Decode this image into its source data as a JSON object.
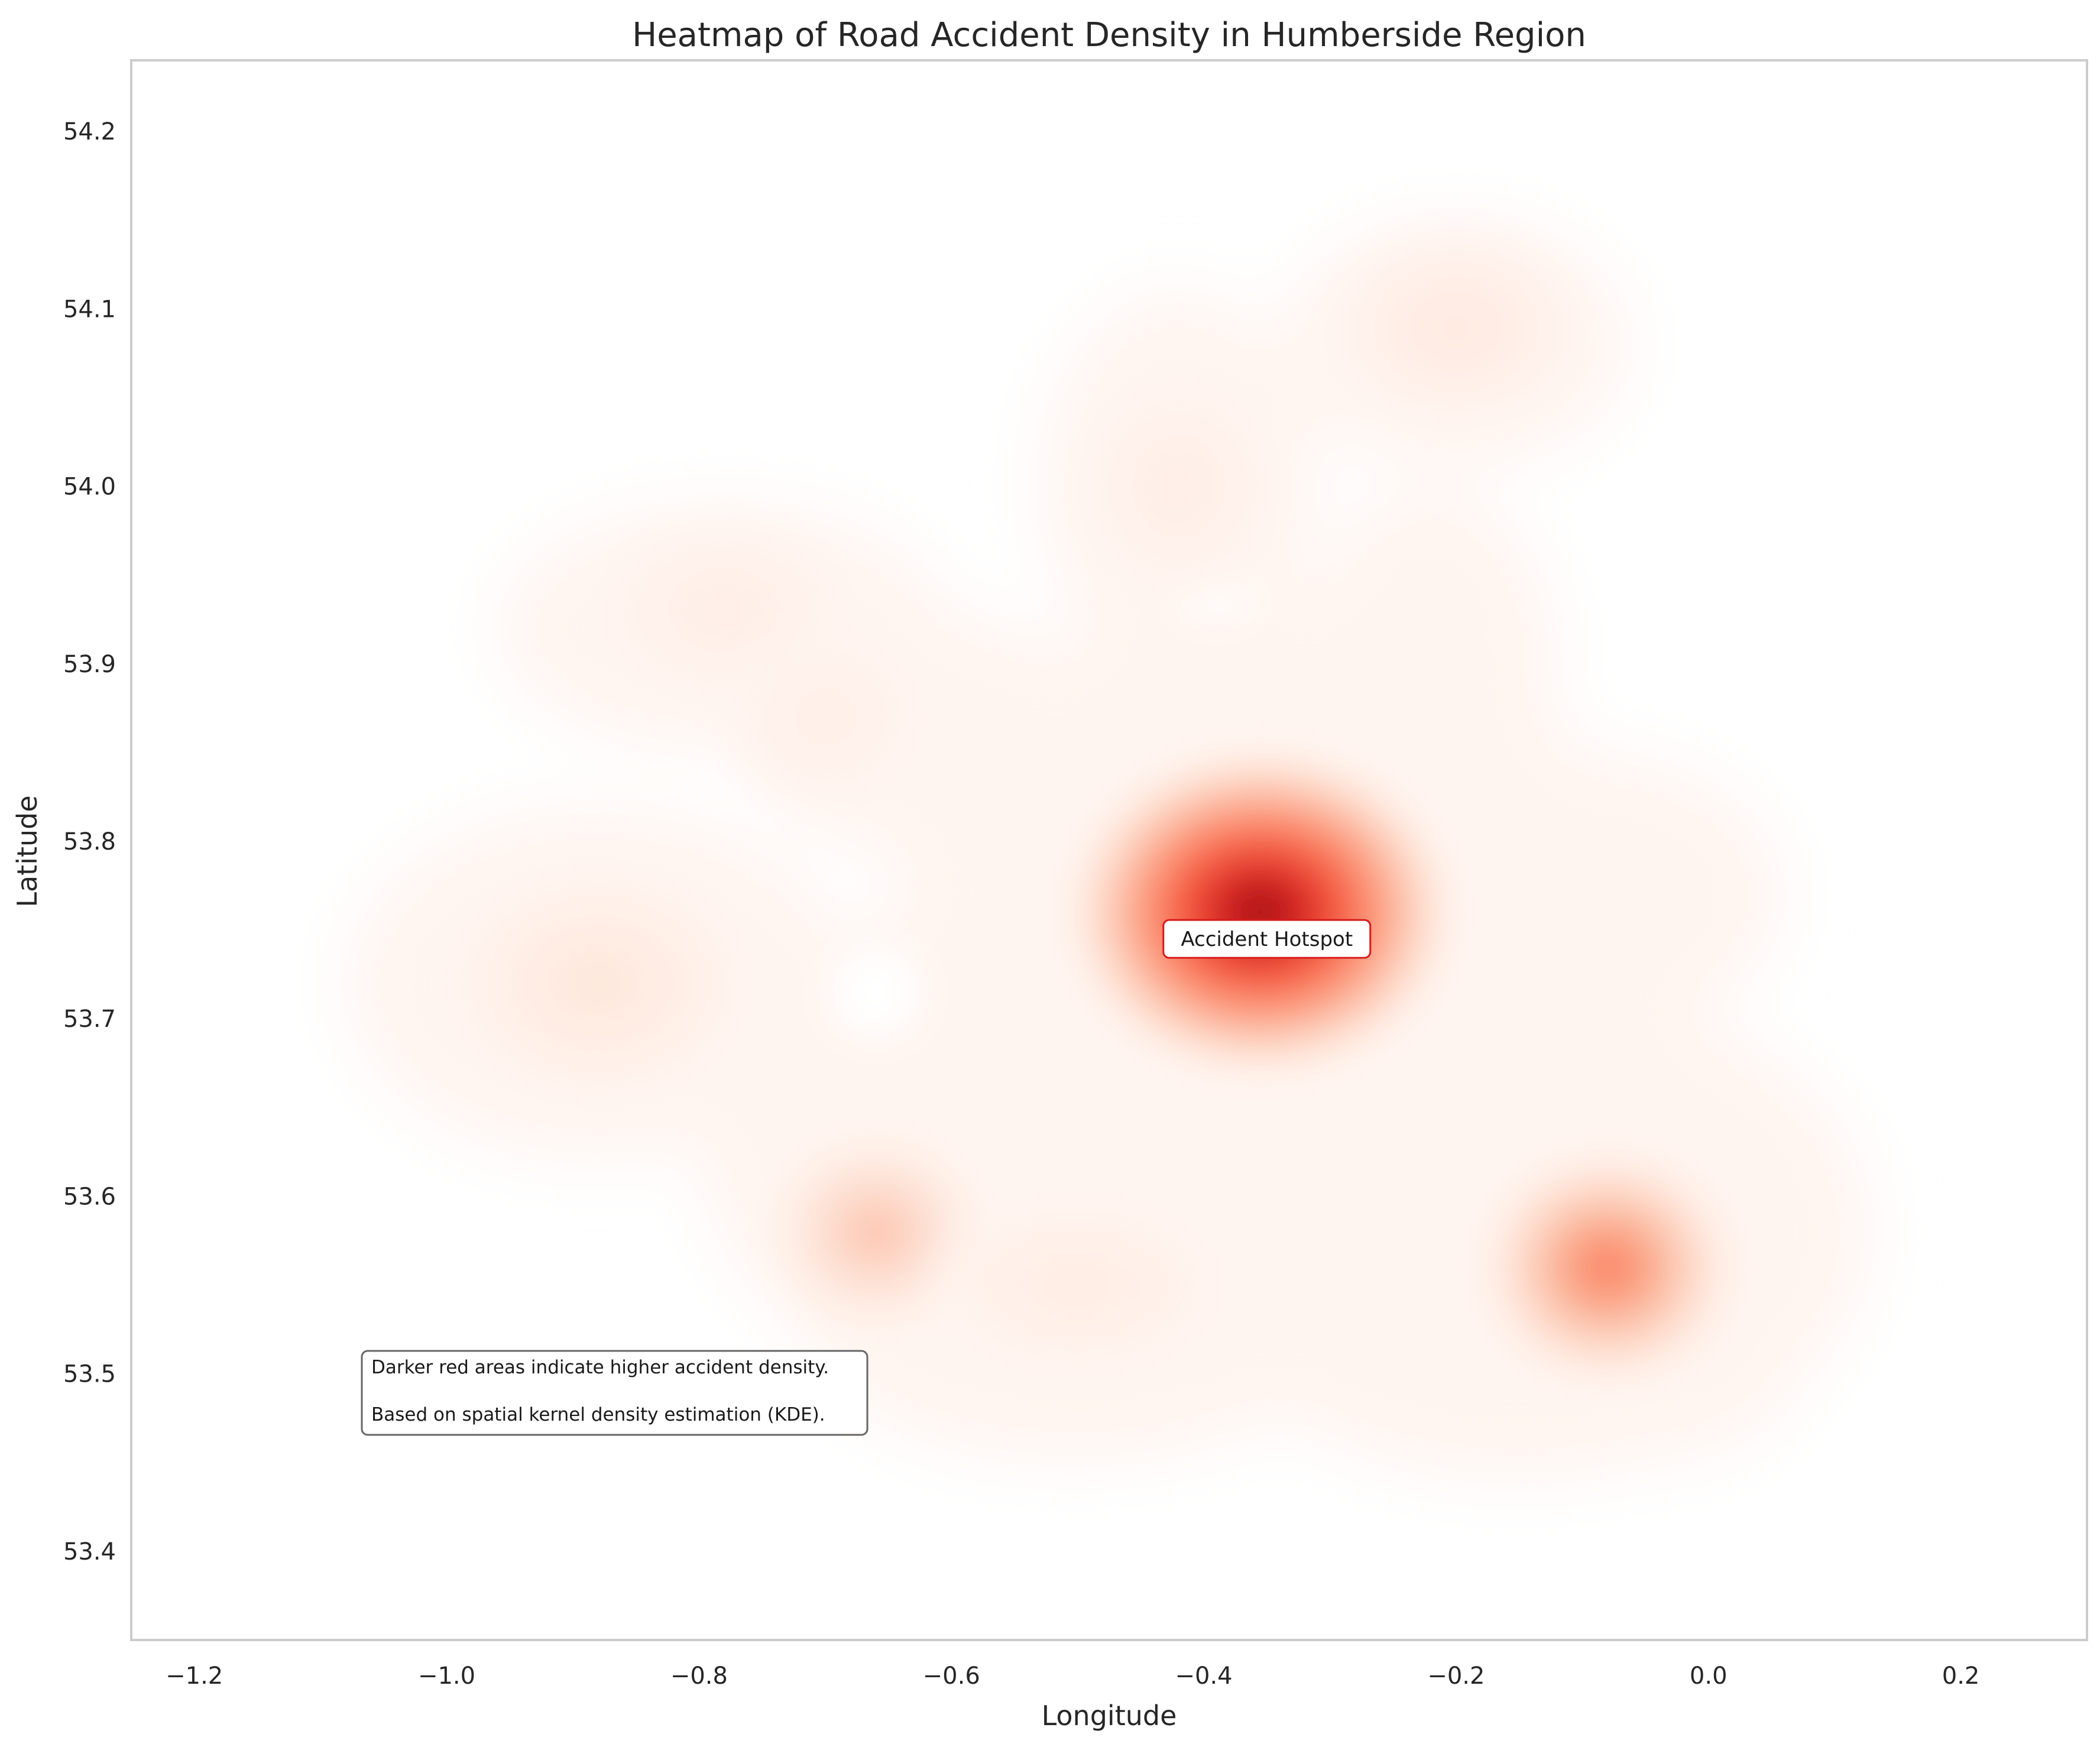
{
  "chart_data": {
    "type": "heatmap",
    "subtype": "kde-density",
    "title": "Heatmap of Road Accident Density in Humberside Region",
    "xlabel": "Longitude",
    "ylabel": "Latitude",
    "xlim": [
      -1.25,
      0.3
    ],
    "ylim": [
      53.35,
      54.24
    ],
    "xticks": [
      -1.2,
      -1.0,
      -0.8,
      -0.6,
      -0.4,
      -0.2,
      0.0,
      0.2
    ],
    "xtick_labels": [
      "−1.2",
      "−1.0",
      "−0.8",
      "−0.6",
      "−0.4",
      "−0.2",
      "0.0",
      "0.2"
    ],
    "yticks": [
      53.4,
      53.5,
      53.6,
      53.7,
      53.8,
      53.9,
      54.0,
      54.1,
      54.2
    ],
    "ytick_labels": [
      "53.4",
      "53.5",
      "53.6",
      "53.7",
      "53.8",
      "53.9",
      "54.0",
      "54.1",
      "54.2"
    ],
    "grid": false,
    "colormap": "Reds",
    "colors": {
      "low": "#fff5f0",
      "mid": "#fb6a4a",
      "high": "#67000d",
      "annotation_edge": "#d7191c",
      "note_edge": "#666666"
    },
    "density_centers": [
      {
        "lon": -0.355,
        "lat": 53.76,
        "relative_density": 1.0
      },
      {
        "lon": -0.08,
        "lat": 53.56,
        "relative_density": 0.5
      },
      {
        "lon": -0.66,
        "lat": 53.58,
        "relative_density": 0.26
      },
      {
        "lon": -0.88,
        "lat": 53.72,
        "relative_density": 0.1
      },
      {
        "lon": -0.2,
        "lat": 54.09,
        "relative_density": 0.08
      },
      {
        "lon": -0.42,
        "lat": 54.0,
        "relative_density": 0.05
      },
      {
        "lon": -0.78,
        "lat": 53.93,
        "relative_density": 0.05
      },
      {
        "lon": -0.5,
        "lat": 53.55,
        "relative_density": 0.06
      },
      {
        "lon": -0.7,
        "lat": 53.87,
        "relative_density": 0.04
      }
    ],
    "annotations": [
      {
        "text": "Accident Hotspot",
        "lon": -0.35,
        "lat": 53.745
      }
    ],
    "note_lines": [
      "Darker red areas indicate higher accident density.",
      "Based on spatial kernel density estimation (KDE)."
    ]
  }
}
